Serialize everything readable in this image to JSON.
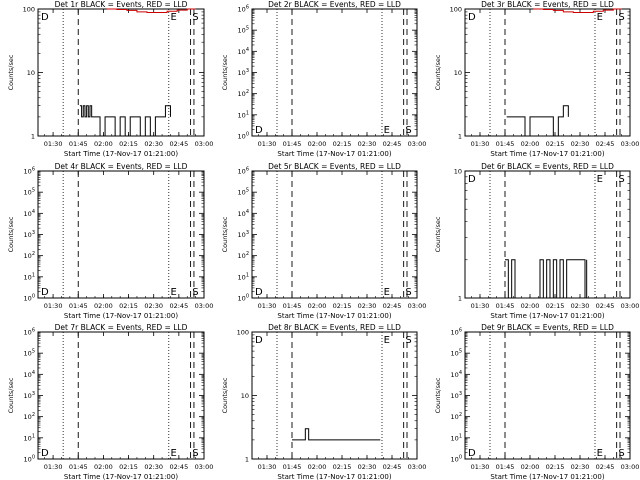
{
  "figure": {
    "xlabel": "Start Time (17-Nov-17 01:21:00)",
    "ylabel": "Counts/sec",
    "x_ticks": [
      "01:30",
      "01:45",
      "02:00",
      "02:15",
      "02:30",
      "02:45",
      "03:00"
    ],
    "x_range": [
      "01:21",
      "03:00"
    ],
    "colors": {
      "events": "#000000",
      "lld": "#cc0000"
    }
  },
  "chart_data": [
    {
      "type": "line",
      "title": "Det 1r BLACK = Events, RED = LLD",
      "yscale": "log",
      "ylim": [
        1,
        100
      ],
      "y_ticks": [
        "1",
        "10",
        "100"
      ],
      "flags_top": [
        "D",
        "E",
        "S"
      ],
      "flags_bottom": [],
      "series": [
        {
          "name": "Events",
          "color": "#000000",
          "x": [
            "01:46",
            "01:47",
            "01:48",
            "01:49",
            "01:50",
            "01:51",
            "01:52",
            "01:53",
            "01:55",
            "01:58",
            "02:01",
            "02:04",
            "02:07",
            "02:10",
            "02:13",
            "02:16",
            "02:19",
            "02:22",
            "02:25",
            "02:28",
            "02:31",
            "02:34",
            "02:37",
            "02:40"
          ],
          "values": [
            3,
            2,
            3,
            2,
            3,
            2,
            3,
            2,
            2,
            1,
            2,
            2,
            1,
            2,
            1,
            2,
            2,
            1,
            2,
            1,
            2,
            2,
            3,
            2
          ]
        },
        {
          "name": "LLD",
          "color": "#cc0000",
          "x": [
            "02:02",
            "02:08",
            "02:14",
            "02:20",
            "02:26",
            "02:32",
            "02:38",
            "02:44",
            "02:50",
            "02:55"
          ],
          "values": [
            100,
            98,
            95,
            90,
            88,
            88,
            92,
            96,
            100,
            100
          ]
        }
      ]
    },
    {
      "type": "line",
      "title": "Det 2r BLACK = Events, RED = LLD",
      "yscale": "log",
      "ylim": [
        1,
        1000000
      ],
      "y_ticks": [
        "10^0",
        "10^1",
        "10^2",
        "10^3",
        "10^4",
        "10^5",
        "10^6"
      ],
      "flags_top": [],
      "flags_bottom": [
        "D",
        "E",
        "S"
      ],
      "series": []
    },
    {
      "type": "line",
      "title": "Det 3r BLACK = Events, RED = LLD",
      "yscale": "log",
      "ylim": [
        1,
        100
      ],
      "y_ticks": [
        "1",
        "10",
        "100"
      ],
      "flags_top": [
        "D",
        "E",
        "S"
      ],
      "flags_bottom": [],
      "series": [
        {
          "name": "Events",
          "color": "#000000",
          "x": [
            "01:46",
            "01:50",
            "01:54",
            "01:57",
            "02:00",
            "02:07",
            "02:12",
            "02:14",
            "02:17",
            "02:20",
            "02:23"
          ],
          "values": [
            2,
            2,
            2,
            1,
            2,
            2,
            2,
            1,
            2,
            3,
            2
          ]
        },
        {
          "name": "LLD",
          "color": "#cc0000",
          "x": [
            "02:02",
            "02:08",
            "02:14",
            "02:20",
            "02:26",
            "02:32",
            "02:38",
            "02:44",
            "02:50",
            "02:55"
          ],
          "values": [
            100,
            98,
            95,
            90,
            88,
            88,
            92,
            96,
            100,
            100
          ]
        }
      ]
    },
    {
      "type": "line",
      "title": "Det 4r BLACK = Events, RED = LLD",
      "yscale": "log",
      "ylim": [
        1,
        1000000
      ],
      "y_ticks": [
        "10^0",
        "10^1",
        "10^2",
        "10^3",
        "10^4",
        "10^5",
        "10^6"
      ],
      "flags_top": [],
      "flags_bottom": [
        "D",
        "E",
        "S"
      ],
      "series": []
    },
    {
      "type": "line",
      "title": "Det 5r BLACK = Events, RED = LLD",
      "yscale": "log",
      "ylim": [
        1,
        1000000
      ],
      "y_ticks": [
        "10^0",
        "10^1",
        "10^2",
        "10^3",
        "10^4",
        "10^5",
        "10^6"
      ],
      "flags_top": [],
      "flags_bottom": [
        "D",
        "E",
        "S"
      ],
      "series": []
    },
    {
      "type": "line",
      "title": "Det 6r BLACK = Events, RED = LLD",
      "yscale": "log",
      "ylim": [
        1,
        10
      ],
      "y_ticks": [
        "1",
        "10"
      ],
      "flags_top": [
        "D",
        "E",
        "S"
      ],
      "flags_bottom": [],
      "series": [
        {
          "name": "Events",
          "color": "#000000",
          "x": [
            "01:45",
            "01:47",
            "01:49",
            "01:51",
            "02:06",
            "02:08",
            "02:10",
            "02:12",
            "02:14",
            "02:16",
            "02:18",
            "02:20",
            "02:22",
            "02:33",
            "02:34"
          ],
          "values": [
            2,
            1,
            2,
            1,
            2,
            1,
            2,
            1,
            2,
            1,
            2,
            1,
            2,
            1,
            2
          ]
        }
      ]
    },
    {
      "type": "line",
      "title": "Det 7r BLACK = Events, RED = LLD",
      "yscale": "log",
      "ylim": [
        1,
        1000000
      ],
      "y_ticks": [
        "10^0",
        "10^1",
        "10^2",
        "10^3",
        "10^4",
        "10^5",
        "10^6"
      ],
      "flags_top": [],
      "flags_bottom": [
        "D",
        "E",
        "S"
      ],
      "series": []
    },
    {
      "type": "line",
      "title": "Det 8r BLACK = Events, RED = LLD",
      "yscale": "log",
      "ylim": [
        1,
        100
      ],
      "y_ticks": [
        "1",
        "10",
        "100"
      ],
      "flags_top": [
        "D",
        "E",
        "S"
      ],
      "flags_bottom": [],
      "series": [
        {
          "name": "Events",
          "color": "#000000",
          "x": [
            "01:45",
            "01:48",
            "01:51",
            "01:53",
            "01:55",
            "01:57",
            "02:00",
            "02:03",
            "02:06",
            "02:09",
            "02:12",
            "02:15",
            "02:18",
            "02:21",
            "02:24",
            "02:27",
            "02:30",
            "02:33",
            "02:36",
            "02:38"
          ],
          "values": [
            2,
            2,
            2,
            3,
            2,
            2,
            2,
            2,
            2,
            2,
            2,
            2,
            2,
            2,
            2,
            2,
            2,
            2,
            2,
            2
          ]
        }
      ]
    },
    {
      "type": "line",
      "title": "Det 9r BLACK = Events, RED = LLD",
      "yscale": "log",
      "ylim": [
        1,
        1000000
      ],
      "y_ticks": [
        "10^0",
        "10^1",
        "10^2",
        "10^3",
        "10^4",
        "10^5",
        "10^6"
      ],
      "flags_top": [],
      "flags_bottom": [
        "D",
        "E",
        "S"
      ],
      "series": []
    }
  ]
}
